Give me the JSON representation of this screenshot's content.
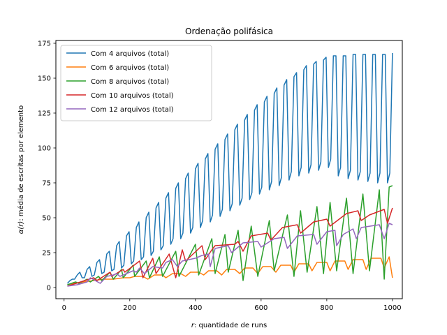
{
  "chart_data": {
    "type": "line",
    "title": "Ordenação polifásica",
    "xlabel_math": "r",
    "xlabel_rest": ": quantidade de runs",
    "ylabel_math": "α(r)",
    "ylabel_rest": ": média de escritas por elemento",
    "xlim": [
      -25,
      1030
    ],
    "ylim": [
      -8,
      177
    ],
    "xticks": [
      0,
      200,
      400,
      600,
      800,
      1000
    ],
    "yticks": [
      0,
      25,
      50,
      75,
      100,
      125,
      150,
      175
    ],
    "grid": false,
    "legend_position": "top-left",
    "series": [
      {
        "name": "Com 4 arquivos (total)",
        "color": "#1f77b4",
        "points": [
          [
            10,
            3
          ],
          [
            18,
            5
          ],
          [
            25,
            6
          ],
          [
            32,
            6
          ],
          [
            40,
            9
          ],
          [
            48,
            11
          ],
          [
            55,
            7
          ],
          [
            62,
            7
          ],
          [
            70,
            13
          ],
          [
            78,
            15
          ],
          [
            85,
            8
          ],
          [
            92,
            9
          ],
          [
            100,
            18
          ],
          [
            108,
            20
          ],
          [
            115,
            10
          ],
          [
            122,
            11
          ],
          [
            130,
            24
          ],
          [
            138,
            26
          ],
          [
            145,
            12
          ],
          [
            152,
            13
          ],
          [
            160,
            30
          ],
          [
            168,
            33
          ],
          [
            175,
            14
          ],
          [
            182,
            16
          ],
          [
            190,
            37
          ],
          [
            198,
            40
          ],
          [
            205,
            17
          ],
          [
            212,
            19
          ],
          [
            220,
            43
          ],
          [
            228,
            47
          ],
          [
            235,
            20
          ],
          [
            242,
            22
          ],
          [
            250,
            50
          ],
          [
            258,
            54
          ],
          [
            265,
            23
          ],
          [
            272,
            26
          ],
          [
            280,
            57
          ],
          [
            288,
            61
          ],
          [
            295,
            27
          ],
          [
            302,
            30
          ],
          [
            310,
            64
          ],
          [
            318,
            68
          ],
          [
            325,
            31
          ],
          [
            332,
            35
          ],
          [
            340,
            71
          ],
          [
            348,
            75
          ],
          [
            355,
            35
          ],
          [
            362,
            39
          ],
          [
            370,
            78
          ],
          [
            378,
            82
          ],
          [
            385,
            39
          ],
          [
            392,
            43
          ],
          [
            400,
            85
          ],
          [
            408,
            89
          ],
          [
            415,
            43
          ],
          [
            422,
            48
          ],
          [
            430,
            92
          ],
          [
            438,
            96
          ],
          [
            445,
            47
          ],
          [
            452,
            52
          ],
          [
            460,
            99
          ],
          [
            468,
            103
          ],
          [
            475,
            51
          ],
          [
            482,
            56
          ],
          [
            490,
            106
          ],
          [
            498,
            110
          ],
          [
            505,
            55
          ],
          [
            512,
            60
          ],
          [
            520,
            113
          ],
          [
            528,
            117
          ],
          [
            535,
            59
          ],
          [
            542,
            64
          ],
          [
            550,
            120
          ],
          [
            558,
            124
          ],
          [
            565,
            63
          ],
          [
            572,
            68
          ],
          [
            580,
            127
          ],
          [
            588,
            131
          ],
          [
            595,
            67
          ],
          [
            602,
            72
          ],
          [
            610,
            133
          ],
          [
            618,
            137
          ],
          [
            625,
            70
          ],
          [
            632,
            76
          ],
          [
            640,
            139
          ],
          [
            648,
            143
          ],
          [
            655,
            73
          ],
          [
            662,
            79
          ],
          [
            670,
            145
          ],
          [
            678,
            149
          ],
          [
            685,
            77
          ],
          [
            692,
            83
          ],
          [
            700,
            151
          ],
          [
            708,
            154
          ],
          [
            715,
            80
          ],
          [
            722,
            86
          ],
          [
            730,
            156
          ],
          [
            738,
            159
          ],
          [
            745,
            82
          ],
          [
            752,
            88
          ],
          [
            760,
            160
          ],
          [
            768,
            162
          ],
          [
            775,
            84
          ],
          [
            782,
            90
          ],
          [
            790,
            163
          ],
          [
            798,
            165
          ],
          [
            805,
            86
          ],
          [
            812,
            92
          ],
          [
            820,
            166
          ],
          [
            828,
            166
          ],
          [
            835,
            80
          ],
          [
            842,
            86
          ],
          [
            850,
            166
          ],
          [
            858,
            166
          ],
          [
            865,
            78
          ],
          [
            872,
            84
          ],
          [
            880,
            167
          ],
          [
            888,
            167
          ],
          [
            895,
            77
          ],
          [
            902,
            83
          ],
          [
            910,
            167
          ],
          [
            918,
            167
          ],
          [
            925,
            76
          ],
          [
            932,
            82
          ],
          [
            940,
            167
          ],
          [
            948,
            167
          ],
          [
            955,
            75
          ],
          [
            962,
            82
          ],
          [
            970,
            167
          ],
          [
            978,
            167
          ],
          [
            985,
            75
          ],
          [
            992,
            82
          ],
          [
            1000,
            168
          ]
        ]
      },
      {
        "name": "Com 6 arquivos (total)",
        "color": "#ff7f0e",
        "points": [
          [
            10,
            2
          ],
          [
            30,
            3
          ],
          [
            60,
            4
          ],
          [
            90,
            5
          ],
          [
            120,
            6
          ],
          [
            150,
            6
          ],
          [
            180,
            7
          ],
          [
            200,
            7
          ],
          [
            215,
            8
          ],
          [
            240,
            8
          ],
          [
            255,
            6
          ],
          [
            275,
            9
          ],
          [
            300,
            9
          ],
          [
            310,
            7
          ],
          [
            330,
            10
          ],
          [
            355,
            10
          ],
          [
            370,
            8
          ],
          [
            385,
            11
          ],
          [
            410,
            11
          ],
          [
            425,
            9
          ],
          [
            440,
            12
          ],
          [
            465,
            12
          ],
          [
            480,
            9
          ],
          [
            495,
            13
          ],
          [
            520,
            13
          ],
          [
            535,
            10
          ],
          [
            550,
            14
          ],
          [
            575,
            14
          ],
          [
            590,
            10
          ],
          [
            605,
            15
          ],
          [
            630,
            15
          ],
          [
            645,
            11
          ],
          [
            660,
            16
          ],
          [
            690,
            16
          ],
          [
            700,
            11
          ],
          [
            715,
            17
          ],
          [
            745,
            17
          ],
          [
            755,
            12
          ],
          [
            770,
            18
          ],
          [
            800,
            18
          ],
          [
            810,
            12
          ],
          [
            825,
            19
          ],
          [
            855,
            19
          ],
          [
            865,
            13
          ],
          [
            880,
            20
          ],
          [
            910,
            20
          ],
          [
            920,
            13
          ],
          [
            935,
            21
          ],
          [
            965,
            21
          ],
          [
            975,
            14
          ],
          [
            990,
            22
          ],
          [
            1000,
            7
          ]
        ]
      },
      {
        "name": "Com 8 arquivos (total)",
        "color": "#2ca02c",
        "points": [
          [
            10,
            2
          ],
          [
            35,
            4
          ],
          [
            45,
            3
          ],
          [
            70,
            6
          ],
          [
            80,
            4
          ],
          [
            105,
            8
          ],
          [
            115,
            5
          ],
          [
            140,
            11
          ],
          [
            150,
            6
          ],
          [
            175,
            13
          ],
          [
            180,
            7
          ],
          [
            210,
            16
          ],
          [
            215,
            8
          ],
          [
            250,
            19
          ],
          [
            260,
            7
          ],
          [
            290,
            22
          ],
          [
            300,
            8
          ],
          [
            340,
            26
          ],
          [
            350,
            8
          ],
          [
            400,
            31
          ],
          [
            410,
            9
          ],
          [
            450,
            35
          ],
          [
            460,
            10
          ],
          [
            490,
            38
          ],
          [
            500,
            11
          ],
          [
            530,
            41
          ],
          [
            545,
            5
          ],
          [
            570,
            44
          ],
          [
            590,
            8
          ],
          [
            625,
            48
          ],
          [
            640,
            12
          ],
          [
            680,
            52
          ],
          [
            700,
            8
          ],
          [
            720,
            55
          ],
          [
            740,
            11
          ],
          [
            770,
            58
          ],
          [
            790,
            10
          ],
          [
            810,
            61
          ],
          [
            830,
            12
          ],
          [
            860,
            64
          ],
          [
            880,
            10
          ],
          [
            910,
            67
          ],
          [
            930,
            12
          ],
          [
            960,
            70
          ],
          [
            975,
            6
          ],
          [
            990,
            72
          ],
          [
            1000,
            73
          ]
        ]
      },
      {
        "name": "Com 10 arquivos (total)",
        "color": "#d62728",
        "points": [
          [
            10,
            1
          ],
          [
            50,
            4
          ],
          [
            90,
            7
          ],
          [
            100,
            5
          ],
          [
            140,
            11
          ],
          [
            145,
            8
          ],
          [
            180,
            13
          ],
          [
            185,
            11
          ],
          [
            230,
            19
          ],
          [
            240,
            7
          ],
          [
            270,
            21
          ],
          [
            280,
            10
          ],
          [
            320,
            24
          ],
          [
            340,
            7
          ],
          [
            360,
            27
          ],
          [
            370,
            19
          ],
          [
            420,
            30
          ],
          [
            430,
            20
          ],
          [
            450,
            27
          ],
          [
            460,
            30
          ],
          [
            520,
            31
          ],
          [
            530,
            33
          ],
          [
            545,
            26
          ],
          [
            570,
            37
          ],
          [
            620,
            39
          ],
          [
            630,
            34
          ],
          [
            665,
            43
          ],
          [
            710,
            45
          ],
          [
            720,
            39
          ],
          [
            760,
            47
          ],
          [
            800,
            49
          ],
          [
            810,
            44
          ],
          [
            860,
            53
          ],
          [
            895,
            55
          ],
          [
            905,
            48
          ],
          [
            930,
            52
          ],
          [
            975,
            56
          ],
          [
            985,
            46
          ],
          [
            1000,
            57
          ]
        ]
      },
      {
        "name": "Com 12 arquivos (total)",
        "color": "#9467bd",
        "points": [
          [
            10,
            1
          ],
          [
            40,
            2
          ],
          [
            70,
            4
          ],
          [
            80,
            7
          ],
          [
            95,
            5
          ],
          [
            110,
            3
          ],
          [
            130,
            8
          ],
          [
            150,
            9
          ],
          [
            160,
            10
          ],
          [
            170,
            8
          ],
          [
            210,
            12
          ],
          [
            220,
            11
          ],
          [
            230,
            14
          ],
          [
            245,
            10
          ],
          [
            270,
            15
          ],
          [
            300,
            14
          ],
          [
            310,
            18
          ],
          [
            330,
            20
          ],
          [
            345,
            15
          ],
          [
            360,
            19
          ],
          [
            400,
            21
          ],
          [
            420,
            23
          ],
          [
            440,
            24
          ],
          [
            445,
            15
          ],
          [
            460,
            28
          ],
          [
            500,
            30
          ],
          [
            510,
            25
          ],
          [
            545,
            32
          ],
          [
            590,
            33
          ],
          [
            600,
            29
          ],
          [
            640,
            35
          ],
          [
            670,
            36
          ],
          [
            680,
            28
          ],
          [
            710,
            37
          ],
          [
            760,
            38
          ],
          [
            770,
            31
          ],
          [
            800,
            40
          ],
          [
            825,
            41
          ],
          [
            830,
            30
          ],
          [
            850,
            38
          ],
          [
            880,
            42
          ],
          [
            890,
            35
          ],
          [
            905,
            43
          ],
          [
            960,
            45
          ],
          [
            975,
            35
          ],
          [
            990,
            46
          ],
          [
            1000,
            45
          ]
        ]
      }
    ]
  }
}
